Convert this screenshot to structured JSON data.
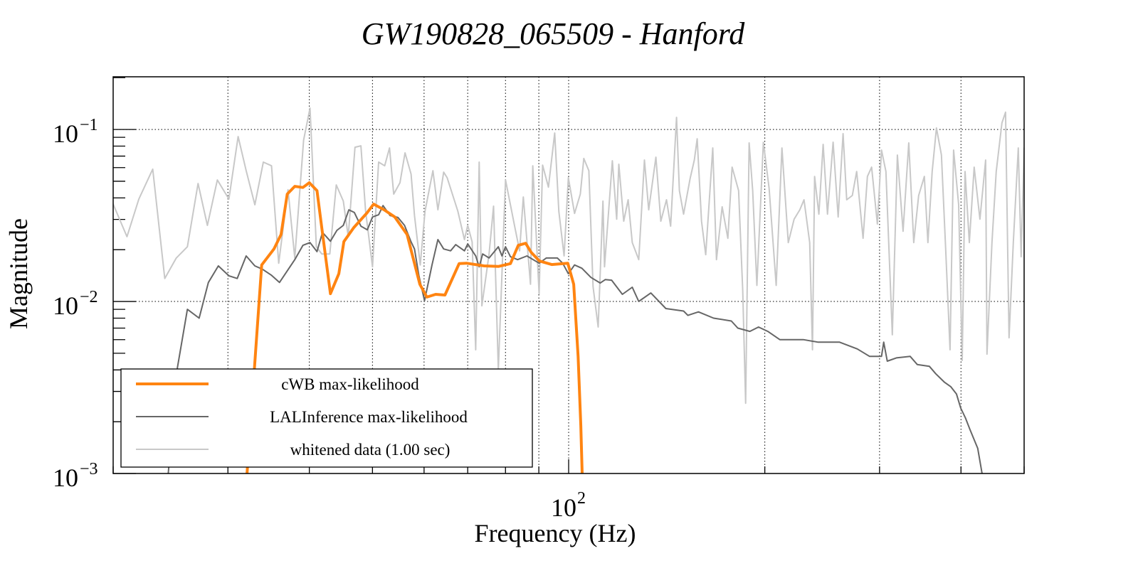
{
  "chart_data": {
    "type": "line",
    "title": "GW190828_065509 - Hanford",
    "xlabel": "Frequency (Hz)",
    "ylabel": "Magnitude",
    "xscale": "log",
    "yscale": "log",
    "xlim": [
      20,
      500
    ],
    "ylim": [
      0.001,
      0.2024
    ],
    "grid": true,
    "x_gridlines": [
      30,
      40,
      50,
      60,
      70,
      80,
      90,
      100,
      200,
      300,
      400
    ],
    "y_gridlines": [
      0.1,
      0.01
    ],
    "x_ticks": [
      {
        "base": "10",
        "exp": "2",
        "value": 100
      }
    ],
    "y_ticks": [
      {
        "base": "10",
        "exp": "−1",
        "value": 0.1
      },
      {
        "base": "10",
        "exp": "−2",
        "value": 0.01
      },
      {
        "base": "10",
        "exp": "−3",
        "value": 0.001
      }
    ],
    "legend_position": "bottom-left",
    "series": [
      {
        "name": "whitened data (1.00 sec)",
        "color": "#c8c8c8",
        "width": 2,
        "x": [
          20.0,
          21.0,
          21.9,
          23.0,
          24.0,
          25.0,
          26.0,
          27.0,
          27.9,
          28.9,
          30.1,
          31.1,
          32.0,
          33.0,
          34.0,
          35.0,
          35.9,
          37.1,
          38.0,
          39.2,
          40.1,
          41.0,
          41.8,
          43.0,
          44.0,
          45.1,
          45.9,
          47.0,
          48.0,
          48.8,
          50.0,
          51.1,
          52.2,
          53.1,
          53.9,
          55.1,
          56.1,
          57.3,
          58.0,
          59.2,
          60.2,
          61.9,
          63.0,
          64.3,
          65.1,
          67.6,
          69.2,
          70.0,
          71.1,
          72.0,
          72.9,
          73.6,
          75.5,
          76.7,
          78.0,
          80.0,
          82.7,
          84.1,
          85.2,
          87.4,
          88.1,
          90.1,
          91.2,
          93.1,
          95.2,
          96.6,
          98.4,
          99.9,
          102.1,
          104.2,
          105.5,
          107.4,
          109.0,
          111.0,
          112.9,
          113.5,
          116.7,
          118.5,
          119.4,
          121.5,
          123.4,
          125.2,
          128.1,
          130.7,
          132.7,
          136.1,
          138.5,
          141.3,
          143.4,
          146.4,
          147.9,
          150.1,
          153.6,
          155.9,
          157.5,
          159.9,
          162.3,
          166.4,
          168.6,
          172.0,
          175.5,
          178.2,
          182.3,
          185.0,
          186.9,
          189.2,
          191.6,
          194.5,
          199.0,
          203.1,
          208.2,
          212.5,
          217.3,
          221.8,
          226.3,
          229.7,
          234.4,
          236.7,
          238.5,
          242.1,
          245.8,
          249.6,
          254.6,
          259.2,
          263.7,
          267.1,
          272.5,
          276.7,
          283.0,
          287.4,
          291.7,
          297.7,
          302.1,
          306.8,
          313.8,
          319.5,
          326.0,
          332.6,
          338.5,
          344.4,
          351.4,
          355.9,
          361.3,
          366.8,
          373.3,
          379.0,
          384.8,
          389.7,
          396.7,
          401.7,
          405.8,
          412.0,
          419.1,
          427.7,
          436.4,
          438.5,
          446.3,
          453.1,
          462.3,
          468.2,
          474.1,
          481.3,
          489.8,
          494.8,
          500.0
        ],
        "y": [
          0.0368,
          0.0238,
          0.0394,
          0.0588,
          0.0136,
          0.0179,
          0.0208,
          0.0485,
          0.0277,
          0.0509,
          0.0394,
          0.0909,
          0.0576,
          0.0365,
          0.0646,
          0.0615,
          0.0167,
          0.0446,
          0.0179,
          0.0867,
          0.133,
          0.0208,
          0.0189,
          0.0189,
          0.0476,
          0.0383,
          0.0238,
          0.0788,
          0.0803,
          0.0335,
          0.0159,
          0.0646,
          0.0615,
          0.0781,
          0.0421,
          0.049,
          0.0731,
          0.055,
          0.0316,
          0.0163,
          0.0335,
          0.0576,
          0.0341,
          0.0565,
          0.0524,
          0.0335,
          0.0229,
          0.0277,
          0.0222,
          0.00524,
          0.0646,
          0.00944,
          0.0189,
          0.0358,
          0.00401,
          0.0509,
          0.0269,
          0.0197,
          0.0405,
          0.0126,
          0.0615,
          0.0111,
          0.0621,
          0.0462,
          0.0953,
          0.0335,
          0.0184,
          0.0524,
          0.0325,
          0.0421,
          0.0678,
          0.0576,
          0.0122,
          0.0071,
          0.0383,
          0.0159,
          0.0658,
          0.0301,
          0.0628,
          0.0293,
          0.039,
          0.022,
          0.0175,
          0.0664,
          0.0341,
          0.069,
          0.0293,
          0.039,
          0.0274,
          0.1175,
          0.0441,
          0.0322,
          0.0519,
          0.0664,
          0.0883,
          0.0293,
          0.0187,
          0.0781,
          0.0175,
          0.0355,
          0.0233,
          0.0604,
          0.0441,
          0.0116,
          0.00256,
          0.0835,
          0.0441,
          0.0124,
          0.0843,
          0.0454,
          0.0124,
          0.0781,
          0.022,
          0.0301,
          0.0341,
          0.039,
          0.022,
          0.00524,
          0.0533,
          0.0322,
          0.0819,
          0.0322,
          0.0843,
          0.031,
          0.0945,
          0.039,
          0.0413,
          0.057,
          0.0233,
          0.0533,
          0.0604,
          0.0282,
          0.0759,
          0.057,
          0.0064,
          0.071,
          0.0256,
          0.0835,
          0.022,
          0.0413,
          0.0533,
          0.022,
          0.057,
          0.102,
          0.071,
          0.02,
          0.00524,
          0.0759,
          0.0365,
          0.00454,
          0.057,
          0.022,
          0.0604,
          0.0301,
          0.0664,
          0.00494,
          0.022,
          0.057,
          0.109,
          0.126,
          0.00615,
          0.022,
          0.0781,
          0.0182,
          0.0781
        ]
      },
      {
        "name": "LALInference max-likelihood",
        "color": "#666666",
        "width": 2,
        "x": [
          24.3,
          25.1,
          26.0,
          27.1,
          28.0,
          29.0,
          30.1,
          31.0,
          32.0,
          33.0,
          33.9,
          35.0,
          36.0,
          38.0,
          39.1,
          40.1,
          41.1,
          41.9,
          43.1,
          44.1,
          45.1,
          46.0,
          46.9,
          48.0,
          49.1,
          50.0,
          51.1,
          51.9,
          53.2,
          54.7,
          56.0,
          57.3,
          58.0,
          58.9,
          60.1,
          61.7,
          63.0,
          64.3,
          65.9,
          67.1,
          69.2,
          70.0,
          72.0,
          72.9,
          73.8,
          75.5,
          78.0,
          79.0,
          80.0,
          81.4,
          83.5,
          86.3,
          90.1,
          92.4,
          96.1,
          97.9,
          99.9,
          102.1,
          104.8,
          108.2,
          111.8,
          113.8,
          116.4,
          120.9,
          125.2,
          128.1,
          133.7,
          141.0,
          150.1,
          152.4,
          158.2,
          166.9,
          177.7,
          181.8,
          189.7,
          195.6,
          202.1,
          210.9,
          229.1,
          241.5,
          260.5,
          277.3,
          289.5,
          302.1,
          304.4,
          308.3,
          318.4,
          334.2,
          342.7,
          357.7,
          365.9,
          377.1,
          385.7,
          393.6,
          399.6,
          406.4,
          412.9,
          424.4,
          430.9
        ],
        "y": [
          0.001,
          0.00413,
          0.009,
          0.008,
          0.0129,
          0.0161,
          0.0141,
          0.0136,
          0.0184,
          0.0161,
          0.0154,
          0.0142,
          0.0129,
          0.0175,
          0.0212,
          0.022,
          0.0195,
          0.0252,
          0.0224,
          0.0259,
          0.0277,
          0.0341,
          0.0329,
          0.0274,
          0.0261,
          0.031,
          0.0319,
          0.0361,
          0.0316,
          0.0308,
          0.0277,
          0.0222,
          0.0202,
          0.0142,
          0.0101,
          0.0163,
          0.0229,
          0.0202,
          0.0197,
          0.0214,
          0.0197,
          0.0216,
          0.0184,
          0.0159,
          0.0189,
          0.0179,
          0.0208,
          0.0184,
          0.0208,
          0.0182,
          0.0175,
          0.0184,
          0.0167,
          0.0179,
          0.0179,
          0.0167,
          0.0145,
          0.0163,
          0.0156,
          0.0138,
          0.0128,
          0.0134,
          0.0133,
          0.011,
          0.0121,
          0.01,
          0.0112,
          0.0091,
          0.0088,
          0.0083,
          0.0087,
          0.008,
          0.0077,
          0.007,
          0.0067,
          0.0071,
          0.0067,
          0.006,
          0.006,
          0.0058,
          0.0058,
          0.0053,
          0.0048,
          0.0048,
          0.0058,
          0.0045,
          0.0047,
          0.0048,
          0.0043,
          0.0042,
          0.0038,
          0.0034,
          0.0032,
          0.0029,
          0.0024,
          0.0021,
          0.0018,
          0.0014,
          0.001
        ]
      },
      {
        "name": "cWB max-likelihood",
        "color": "#ff8411",
        "width": 4,
        "x": [
          32.1,
          33.8,
          35.3,
          36.2,
          37.0,
          38.0,
          39.1,
          40.0,
          41.1,
          41.8,
          43.1,
          44.4,
          45.2,
          46.8,
          49.0,
          50.2,
          52.1,
          54.1,
          56.5,
          59.1,
          60.6,
          62.5,
          64.6,
          67.9,
          69.7,
          74.2,
          78.1,
          81.4,
          83.7,
          85.9,
          87.6,
          90.2,
          94.2,
          99.7,
          101.8,
          103.4,
          104.4,
          104.9
        ],
        "y": [
          0.001,
          0.0163,
          0.0202,
          0.0245,
          0.0421,
          0.0467,
          0.046,
          0.049,
          0.0441,
          0.0269,
          0.0111,
          0.0145,
          0.0223,
          0.0269,
          0.0326,
          0.0368,
          0.0341,
          0.031,
          0.0245,
          0.0126,
          0.0106,
          0.011,
          0.0109,
          0.0166,
          0.0167,
          0.0161,
          0.016,
          0.0166,
          0.0212,
          0.0218,
          0.0193,
          0.0172,
          0.0164,
          0.0167,
          0.0126,
          0.0048,
          0.0019,
          0.001
        ]
      }
    ]
  },
  "legend": {
    "items": [
      {
        "label": "cWB max-likelihood",
        "color": "#ff8411"
      },
      {
        "label": "LALInference max-likelihood",
        "color": "#666666"
      },
      {
        "label": "whitened data (1.00 sec)",
        "color": "#c8c8c8"
      }
    ]
  }
}
